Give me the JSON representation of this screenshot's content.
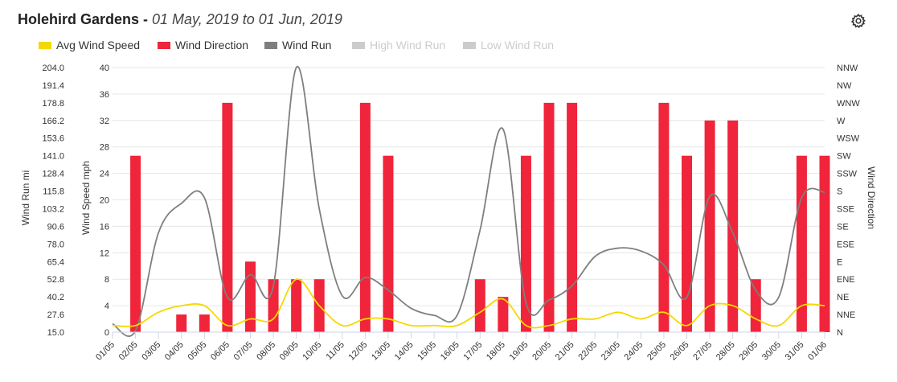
{
  "header": {
    "station": "Holehird Gardens",
    "separator": " - ",
    "range": "01 May, 2019 to 01 Jun, 2019"
  },
  "icons": {
    "settings": "gear-icon"
  },
  "colors": {
    "avg_wind_speed": "#f5d800",
    "wind_direction": "#f0243a",
    "wind_run": "#7f7f7f",
    "disabled": "#cccccc",
    "grid": "#e6e6e6"
  },
  "legend": [
    {
      "label": "Avg Wind Speed",
      "color": "#f5d800",
      "enabled": true
    },
    {
      "label": "Wind Direction",
      "color": "#f0243a",
      "enabled": true
    },
    {
      "label": "Wind Run",
      "color": "#7f7f7f",
      "enabled": true
    },
    {
      "label": "High Wind Run",
      "color": "#cccccc",
      "enabled": false
    },
    {
      "label": "Low Wind Run",
      "color": "#cccccc",
      "enabled": false
    }
  ],
  "chart_data": {
    "type": "bar",
    "categories": [
      "01/05",
      "02/05",
      "03/05",
      "04/05",
      "05/05",
      "06/05",
      "07/05",
      "08/05",
      "09/05",
      "10/05",
      "11/05",
      "12/05",
      "13/05",
      "14/05",
      "15/05",
      "16/05",
      "17/05",
      "18/05",
      "19/05",
      "20/05",
      "21/05",
      "22/05",
      "23/05",
      "24/05",
      "25/05",
      "26/05",
      "27/05",
      "28/05",
      "29/05",
      "30/05",
      "31/05",
      "01/06"
    ],
    "axes": {
      "wind_run": {
        "label": "Wind Run mi",
        "ticks": [
          "15.0",
          "27.6",
          "40.2",
          "52.8",
          "65.4",
          "78.0",
          "90.6",
          "103.2",
          "115.8",
          "128.4",
          "141.0",
          "153.6",
          "166.2",
          "178.8",
          "191.4",
          "204.0"
        ],
        "range": [
          15.0,
          204.0
        ]
      },
      "wind_speed": {
        "label": "Wind Speed mph",
        "ticks": [
          "0",
          "4",
          "8",
          "12",
          "16",
          "20",
          "24",
          "28",
          "32",
          "36",
          "40"
        ],
        "range": [
          0,
          40
        ]
      },
      "wind_direction": {
        "label": "Wind Direction",
        "ticks": [
          "N",
          "NNE",
          "NE",
          "ENE",
          "E",
          "ESE",
          "SE",
          "SSE",
          "S",
          "SSW",
          "SW",
          "WSW",
          "W",
          "WNW",
          "NW",
          "NNW"
        ]
      }
    },
    "grid": true,
    "legend_position": "top-left",
    "series": [
      {
        "name": "Avg Wind Speed",
        "type": "line",
        "axis": "wind_speed",
        "values": [
          1,
          1,
          3,
          4,
          4,
          1,
          2,
          2,
          8,
          4,
          1,
          2,
          2,
          1,
          1,
          1,
          3,
          5,
          1,
          1,
          2,
          2,
          3,
          2,
          3,
          1,
          4,
          4,
          2,
          1,
          4,
          4
        ]
      },
      {
        "name": "Wind Direction",
        "type": "bar",
        "axis": "wind_direction",
        "values": [
          null,
          "SW",
          null,
          "NNE",
          "NNE",
          "WNW",
          "E",
          "ENE",
          "ENE",
          "ENE",
          null,
          "WNW",
          "SW",
          null,
          null,
          null,
          "ENE",
          "NE",
          "SW",
          "WNW",
          "WNW",
          null,
          null,
          null,
          "WNW",
          "SW",
          "W",
          "W",
          "ENE",
          null,
          "SW",
          "SW"
        ]
      },
      {
        "name": "Wind Run",
        "type": "line",
        "axis": "wind_run",
        "values": [
          21,
          16,
          86,
          107,
          111,
          40,
          56,
          48,
          204,
          103,
          41,
          54,
          45,
          32,
          27,
          27,
          88,
          160,
          36,
          38,
          48,
          69,
          75,
          73,
          63,
          40,
          112,
          86,
          45,
          40,
          111,
          115
        ]
      }
    ]
  }
}
